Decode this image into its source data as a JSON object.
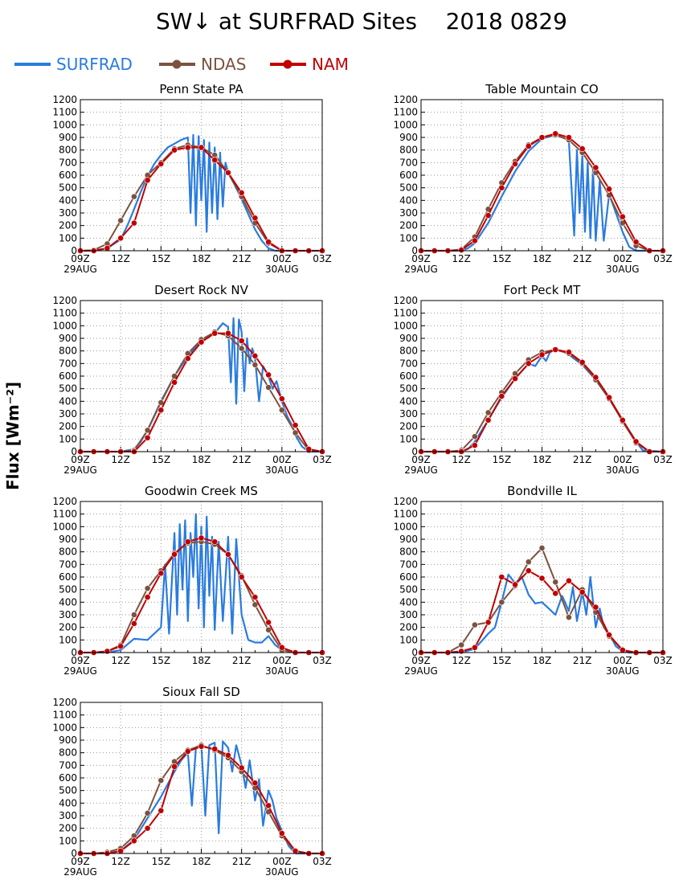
{
  "title": "SW↓ at SURFRAD Sites    2018 0829",
  "ylabel": "Flux [Wm⁻²]",
  "legend": [
    {
      "name": "SURFRAD",
      "color": "#2a7be0",
      "marker": "none"
    },
    {
      "name": "NDAS",
      "color": "#7b5240",
      "marker": "circle"
    },
    {
      "name": "NAM",
      "color": "#c00000",
      "marker": "circle"
    }
  ],
  "axis": {
    "yticks": [
      0,
      100,
      200,
      300,
      400,
      500,
      600,
      700,
      800,
      900,
      1000,
      1100,
      1200
    ],
    "ylim": [
      0,
      1200
    ],
    "xticks": [
      "09Z",
      "12Z",
      "15Z",
      "18Z",
      "21Z",
      "00Z",
      "03Z"
    ],
    "xdates": {
      "09Z": "29AUG",
      "00Z": "30AUG"
    },
    "xlim_hours": [
      9,
      27
    ],
    "grid": true
  },
  "chart_data": [
    {
      "type": "line",
      "title": "Penn State PA",
      "series": [
        {
          "name": "SURFRAD",
          "x": [
            9,
            10,
            11,
            12,
            12.5,
            13,
            13.5,
            14,
            14.5,
            15,
            15.5,
            16,
            16.5,
            17,
            17.2,
            17.4,
            17.6,
            17.8,
            18,
            18.2,
            18.4,
            18.6,
            18.8,
            19,
            19.2,
            19.4,
            19.6,
            19.8,
            20,
            20.5,
            21,
            21.5,
            22,
            22.5,
            23,
            23.5,
            24,
            27
          ],
          "values": [
            0,
            0,
            20,
            90,
            200,
            330,
            470,
            590,
            690,
            760,
            820,
            850,
            880,
            900,
            300,
            920,
            200,
            910,
            400,
            880,
            150,
            860,
            300,
            820,
            250,
            780,
            350,
            700,
            620,
            520,
            410,
            290,
            170,
            80,
            20,
            0,
            0,
            0
          ]
        },
        {
          "name": "NDAS",
          "x": [
            9,
            10,
            11,
            12,
            13,
            14,
            15,
            16,
            17,
            18,
            19,
            20,
            21,
            22,
            23,
            24,
            25,
            26,
            27
          ],
          "values": [
            0,
            5,
            55,
            240,
            430,
            600,
            700,
            810,
            840,
            820,
            760,
            620,
            430,
            220,
            60,
            0,
            0,
            0,
            0
          ]
        },
        {
          "name": "NAM",
          "x": [
            9,
            10,
            11,
            12,
            13,
            14,
            15,
            16,
            17,
            18,
            19,
            20,
            21,
            22,
            23,
            24,
            25,
            26,
            27
          ],
          "values": [
            0,
            0,
            20,
            100,
            220,
            560,
            690,
            800,
            820,
            820,
            720,
            620,
            460,
            260,
            70,
            0,
            0,
            0,
            0
          ]
        }
      ]
    },
    {
      "type": "line",
      "title": "Table Mountain CO",
      "series": [
        {
          "name": "SURFRAD",
          "x": [
            9,
            11,
            12,
            12.5,
            13,
            14,
            15,
            16,
            17,
            18,
            19,
            19.5,
            20,
            20.4,
            20.6,
            20.8,
            21,
            21.2,
            21.4,
            21.6,
            21.8,
            22,
            22.3,
            22.6,
            23,
            23.5,
            24,
            24.5,
            25,
            27
          ],
          "values": [
            0,
            0,
            0,
            20,
            60,
            220,
            430,
            630,
            790,
            890,
            920,
            900,
            880,
            120,
            800,
            300,
            760,
            150,
            700,
            100,
            650,
            80,
            560,
            80,
            450,
            300,
            150,
            30,
            0,
            0
          ]
        },
        {
          "name": "NDAS",
          "x": [
            9,
            10,
            11,
            12,
            13,
            14,
            15,
            16,
            17,
            18,
            19,
            20,
            21,
            22,
            23,
            24,
            25,
            26,
            27
          ],
          "values": [
            0,
            0,
            0,
            10,
            110,
            330,
            540,
            710,
            840,
            900,
            920,
            880,
            780,
            620,
            440,
            220,
            40,
            0,
            0
          ]
        },
        {
          "name": "NAM",
          "x": [
            9,
            10,
            11,
            12,
            13,
            14,
            15,
            16,
            17,
            18,
            19,
            20,
            21,
            22,
            23,
            24,
            25,
            26,
            27
          ],
          "values": [
            0,
            0,
            0,
            5,
            80,
            280,
            500,
            690,
            830,
            900,
            930,
            900,
            810,
            660,
            490,
            270,
            70,
            0,
            0
          ]
        }
      ]
    },
    {
      "type": "line",
      "title": "Desert Rock NV",
      "series": [
        {
          "name": "SURFRAD",
          "x": [
            9,
            12,
            13,
            13.5,
            14,
            15,
            16,
            17,
            18,
            18.6,
            19,
            19.3,
            19.6,
            20,
            20.2,
            20.4,
            20.6,
            20.8,
            21,
            21.2,
            21.4,
            21.6,
            21.8,
            22,
            22.3,
            22.6,
            23,
            23.3,
            23.6,
            24,
            24.4,
            24.8,
            25,
            25.5,
            26,
            27
          ],
          "values": [
            0,
            0,
            20,
            80,
            170,
            400,
            600,
            760,
            880,
            920,
            940,
            980,
            1020,
            990,
            550,
            1060,
            380,
            1050,
            950,
            480,
            900,
            700,
            820,
            740,
            400,
            680,
            600,
            500,
            560,
            400,
            280,
            200,
            130,
            40,
            0,
            0
          ]
        },
        {
          "name": "NDAS",
          "x": [
            9,
            10,
            11,
            12,
            13,
            14,
            15,
            16,
            17,
            18,
            19,
            20,
            21,
            22,
            23,
            24,
            25,
            26,
            27
          ],
          "values": [
            0,
            0,
            0,
            0,
            10,
            170,
            390,
            600,
            780,
            890,
            950,
            920,
            820,
            690,
            510,
            330,
            150,
            10,
            0
          ]
        },
        {
          "name": "NAM",
          "x": [
            9,
            10,
            11,
            12,
            13,
            14,
            15,
            16,
            17,
            18,
            19,
            20,
            21,
            22,
            23,
            24,
            25,
            26,
            27
          ],
          "values": [
            0,
            0,
            0,
            0,
            0,
            110,
            330,
            550,
            740,
            870,
            940,
            940,
            880,
            760,
            610,
            420,
            210,
            20,
            0
          ]
        }
      ]
    },
    {
      "type": "line",
      "title": "Fort Peck MT",
      "series": [
        {
          "name": "SURFRAD",
          "x": [
            9,
            12,
            12.5,
            13,
            14,
            15,
            16,
            17,
            17.5,
            18,
            18.3,
            18.6,
            19,
            19.5,
            20,
            21,
            22,
            23,
            24,
            25,
            25.5,
            27
          ],
          "values": [
            0,
            0,
            20,
            80,
            250,
            430,
            580,
            700,
            680,
            760,
            720,
            790,
            810,
            800,
            770,
            690,
            570,
            420,
            250,
            80,
            10,
            0
          ]
        },
        {
          "name": "NDAS",
          "x": [
            9,
            10,
            11,
            12,
            13,
            14,
            15,
            16,
            17,
            18,
            19,
            20,
            21,
            22,
            23,
            24,
            25,
            26,
            27
          ],
          "values": [
            0,
            0,
            0,
            10,
            120,
            310,
            470,
            620,
            730,
            790,
            810,
            780,
            700,
            570,
            420,
            240,
            70,
            0,
            0
          ]
        },
        {
          "name": "NAM",
          "x": [
            9,
            10,
            11,
            12,
            13,
            14,
            15,
            16,
            17,
            18,
            19,
            20,
            21,
            22,
            23,
            24,
            25,
            26,
            27
          ],
          "values": [
            0,
            0,
            0,
            0,
            50,
            250,
            440,
            580,
            700,
            770,
            810,
            790,
            710,
            590,
            430,
            250,
            80,
            0,
            0
          ]
        }
      ]
    },
    {
      "type": "line",
      "title": "Goodwin Creek MS",
      "series": [
        {
          "name": "SURFRAD",
          "x": [
            9,
            11,
            12,
            13,
            14,
            15,
            15.3,
            15.6,
            16,
            16.2,
            16.4,
            16.6,
            16.8,
            17,
            17.2,
            17.4,
            17.6,
            17.8,
            18,
            18.2,
            18.4,
            18.6,
            18.8,
            19,
            19.3,
            19.6,
            20,
            20.3,
            20.6,
            21,
            21.5,
            22,
            22.5,
            23,
            23.5,
            24,
            25,
            27
          ],
          "values": [
            0,
            0,
            20,
            110,
            100,
            200,
            700,
            150,
            950,
            300,
            1020,
            500,
            1050,
            250,
            950,
            600,
            1100,
            350,
            1000,
            200,
            1080,
            450,
            920,
            180,
            880,
            250,
            920,
            150,
            900,
            300,
            100,
            80,
            80,
            130,
            60,
            20,
            0,
            0
          ]
        },
        {
          "name": "NDAS",
          "x": [
            9,
            10,
            11,
            12,
            13,
            14,
            15,
            16,
            17,
            18,
            19,
            20,
            21,
            22,
            23,
            24,
            25,
            26,
            27
          ],
          "values": [
            0,
            0,
            10,
            60,
            300,
            510,
            650,
            790,
            870,
            880,
            860,
            780,
            610,
            380,
            180,
            20,
            0,
            0,
            0
          ]
        },
        {
          "name": "NAM",
          "x": [
            9,
            10,
            11,
            12,
            13,
            14,
            15,
            16,
            17,
            18,
            19,
            20,
            21,
            22,
            23,
            24,
            25,
            26,
            27
          ],
          "values": [
            0,
            0,
            10,
            50,
            230,
            440,
            630,
            780,
            880,
            910,
            880,
            780,
            600,
            440,
            240,
            40,
            0,
            0,
            0
          ]
        }
      ]
    },
    {
      "type": "line",
      "title": "Bondville IL",
      "series": [
        {
          "name": "SURFRAD",
          "x": [
            9,
            12,
            13,
            14,
            14.5,
            15,
            15.5,
            16,
            16.5,
            17,
            17.5,
            18,
            18.5,
            19,
            19.5,
            20,
            20.3,
            20.6,
            21,
            21.3,
            21.6,
            22,
            22.3,
            22.6,
            23,
            23.5,
            24,
            24.5,
            27
          ],
          "values": [
            0,
            0,
            30,
            150,
            200,
            400,
            620,
            550,
            600,
            460,
            390,
            400,
            350,
            300,
            450,
            330,
            520,
            250,
            480,
            300,
            600,
            200,
            350,
            200,
            150,
            50,
            10,
            0,
            0
          ]
        },
        {
          "name": "NDAS",
          "x": [
            9,
            10,
            11,
            12,
            13,
            14,
            15,
            16,
            17,
            18,
            19,
            20,
            21,
            22,
            23,
            24,
            25,
            26,
            27
          ],
          "values": [
            0,
            0,
            0,
            60,
            220,
            240,
            400,
            530,
            720,
            830,
            560,
            280,
            500,
            320,
            130,
            20,
            0,
            0,
            0
          ]
        },
        {
          "name": "NAM",
          "x": [
            9,
            10,
            11,
            12,
            13,
            14,
            15,
            16,
            17,
            18,
            19,
            20,
            21,
            22,
            23,
            24,
            25,
            26,
            27
          ],
          "values": [
            0,
            0,
            0,
            10,
            40,
            240,
            600,
            540,
            650,
            590,
            470,
            570,
            480,
            360,
            140,
            20,
            0,
            0,
            0
          ]
        }
      ]
    },
    {
      "type": "line",
      "title": "Sioux Fall SD",
      "series": [
        {
          "name": "SURFRAD",
          "x": [
            9,
            11,
            12,
            13,
            14,
            15,
            16,
            16.5,
            17,
            17.3,
            17.6,
            18,
            18.3,
            18.6,
            19,
            19.3,
            19.6,
            20,
            20.3,
            20.6,
            21,
            21.3,
            21.6,
            22,
            22.3,
            22.6,
            23,
            23.3,
            23.6,
            24,
            24.5,
            25,
            27
          ],
          "values": [
            0,
            0,
            20,
            110,
            280,
            450,
            650,
            740,
            800,
            380,
            840,
            870,
            300,
            860,
            880,
            160,
            890,
            840,
            650,
            860,
            700,
            520,
            740,
            420,
            590,
            220,
            500,
            420,
            280,
            180,
            60,
            0,
            0
          ]
        },
        {
          "name": "NDAS",
          "x": [
            9,
            10,
            11,
            12,
            13,
            14,
            15,
            16,
            17,
            18,
            19,
            20,
            21,
            22,
            23,
            24,
            25,
            26,
            27
          ],
          "values": [
            0,
            0,
            10,
            40,
            140,
            320,
            580,
            730,
            820,
            860,
            820,
            760,
            650,
            520,
            330,
            140,
            20,
            0,
            0
          ]
        },
        {
          "name": "NAM",
          "x": [
            9,
            10,
            11,
            12,
            13,
            14,
            15,
            16,
            17,
            18,
            19,
            20,
            21,
            22,
            23,
            24,
            25,
            26,
            27
          ],
          "values": [
            0,
            0,
            0,
            20,
            100,
            200,
            340,
            690,
            810,
            850,
            830,
            780,
            680,
            560,
            380,
            160,
            20,
            0,
            0
          ]
        }
      ]
    }
  ]
}
